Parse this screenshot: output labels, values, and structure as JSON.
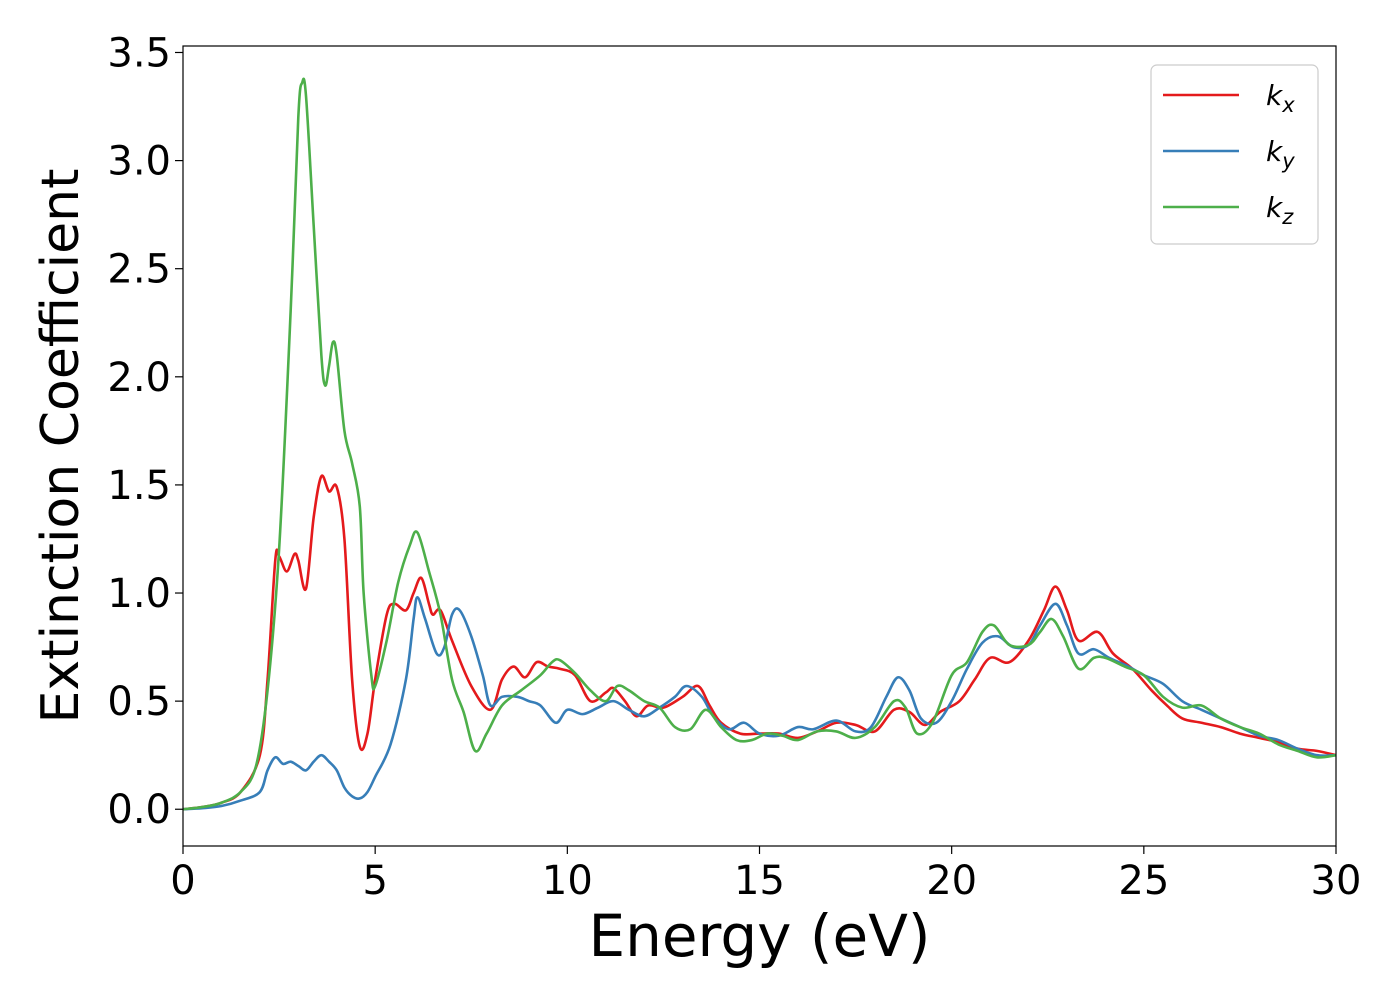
{
  "chart_data": {
    "type": "line",
    "title": "",
    "xlabel": "Energy (eV)",
    "ylabel": "Extinction Coefficient",
    "xlim": [
      0,
      30
    ],
    "ylim": [
      -0.17,
      3.53
    ],
    "xticks": [
      0,
      5,
      10,
      15,
      20,
      25,
      30
    ],
    "xtick_labels": [
      "0",
      "5",
      "10",
      "15",
      "20",
      "25",
      "30"
    ],
    "yticks": [
      0.0,
      0.5,
      1.0,
      1.5,
      2.0,
      2.5,
      3.0,
      3.5
    ],
    "ytick_labels": [
      "0.0",
      "0.5",
      "1.0",
      "1.5",
      "2.0",
      "2.5",
      "3.0",
      "3.5"
    ],
    "grid": false,
    "legend_position": "top-right",
    "series": [
      {
        "name": "k_x",
        "legend_base": "k",
        "legend_sub": "x",
        "color": "#e41a1c",
        "points": [
          [
            0,
            0
          ],
          [
            0.5,
            0.01
          ],
          [
            1.0,
            0.03
          ],
          [
            1.5,
            0.08
          ],
          [
            2.0,
            0.25
          ],
          [
            2.2,
            0.6
          ],
          [
            2.4,
            1.15
          ],
          [
            2.5,
            1.17
          ],
          [
            2.7,
            1.1
          ],
          [
            2.9,
            1.18
          ],
          [
            3.0,
            1.15
          ],
          [
            3.2,
            1.02
          ],
          [
            3.4,
            1.35
          ],
          [
            3.6,
            1.54
          ],
          [
            3.8,
            1.47
          ],
          [
            4.0,
            1.49
          ],
          [
            4.2,
            1.25
          ],
          [
            4.4,
            0.6
          ],
          [
            4.6,
            0.29
          ],
          [
            4.8,
            0.35
          ],
          [
            5.0,
            0.6
          ],
          [
            5.3,
            0.9
          ],
          [
            5.5,
            0.95
          ],
          [
            5.8,
            0.92
          ],
          [
            6.0,
            1.0
          ],
          [
            6.2,
            1.07
          ],
          [
            6.4,
            0.95
          ],
          [
            6.5,
            0.9
          ],
          [
            6.7,
            0.92
          ],
          [
            7.0,
            0.78
          ],
          [
            7.5,
            0.57
          ],
          [
            8.0,
            0.46
          ],
          [
            8.3,
            0.6
          ],
          [
            8.6,
            0.66
          ],
          [
            8.9,
            0.61
          ],
          [
            9.2,
            0.68
          ],
          [
            9.5,
            0.66
          ],
          [
            9.8,
            0.65
          ],
          [
            10.2,
            0.62
          ],
          [
            10.6,
            0.5
          ],
          [
            11.0,
            0.54
          ],
          [
            11.2,
            0.56
          ],
          [
            11.5,
            0.5
          ],
          [
            11.8,
            0.43
          ],
          [
            12.1,
            0.48
          ],
          [
            12.5,
            0.47
          ],
          [
            13.0,
            0.52
          ],
          [
            13.4,
            0.57
          ],
          [
            13.7,
            0.48
          ],
          [
            14.0,
            0.4
          ],
          [
            14.5,
            0.35
          ],
          [
            15.0,
            0.35
          ],
          [
            15.5,
            0.35
          ],
          [
            16.0,
            0.33
          ],
          [
            16.5,
            0.36
          ],
          [
            17.0,
            0.4
          ],
          [
            17.5,
            0.39
          ],
          [
            18.0,
            0.36
          ],
          [
            18.5,
            0.46
          ],
          [
            18.9,
            0.45
          ],
          [
            19.3,
            0.39
          ],
          [
            19.7,
            0.45
          ],
          [
            20.2,
            0.5
          ],
          [
            20.6,
            0.6
          ],
          [
            21.0,
            0.7
          ],
          [
            21.5,
            0.68
          ],
          [
            22.0,
            0.78
          ],
          [
            22.4,
            0.92
          ],
          [
            22.7,
            1.03
          ],
          [
            23.0,
            0.92
          ],
          [
            23.3,
            0.78
          ],
          [
            23.8,
            0.82
          ],
          [
            24.2,
            0.72
          ],
          [
            24.7,
            0.65
          ],
          [
            25.2,
            0.55
          ],
          [
            25.6,
            0.48
          ],
          [
            26.0,
            0.42
          ],
          [
            26.5,
            0.4
          ],
          [
            27.0,
            0.38
          ],
          [
            27.5,
            0.35
          ],
          [
            28.0,
            0.33
          ],
          [
            28.5,
            0.31
          ],
          [
            29.0,
            0.28
          ],
          [
            29.5,
            0.27
          ],
          [
            30.0,
            0.25
          ]
        ]
      },
      {
        "name": "k_y",
        "legend_base": "k",
        "legend_sub": "y",
        "color": "#377eb8",
        "points": [
          [
            0,
            0
          ],
          [
            0.5,
            0.005
          ],
          [
            1.0,
            0.015
          ],
          [
            1.5,
            0.04
          ],
          [
            2.0,
            0.08
          ],
          [
            2.2,
            0.18
          ],
          [
            2.4,
            0.24
          ],
          [
            2.6,
            0.21
          ],
          [
            2.8,
            0.22
          ],
          [
            3.0,
            0.2
          ],
          [
            3.2,
            0.18
          ],
          [
            3.4,
            0.22
          ],
          [
            3.6,
            0.25
          ],
          [
            3.8,
            0.22
          ],
          [
            4.0,
            0.18
          ],
          [
            4.2,
            0.1
          ],
          [
            4.4,
            0.06
          ],
          [
            4.6,
            0.05
          ],
          [
            4.8,
            0.08
          ],
          [
            5.0,
            0.15
          ],
          [
            5.4,
            0.3
          ],
          [
            5.8,
            0.6
          ],
          [
            6.0,
            0.88
          ],
          [
            6.1,
            0.98
          ],
          [
            6.3,
            0.88
          ],
          [
            6.6,
            0.72
          ],
          [
            6.8,
            0.75
          ],
          [
            7.0,
            0.9
          ],
          [
            7.2,
            0.92
          ],
          [
            7.5,
            0.8
          ],
          [
            7.8,
            0.62
          ],
          [
            8.0,
            0.48
          ],
          [
            8.3,
            0.52
          ],
          [
            8.7,
            0.52
          ],
          [
            9.0,
            0.5
          ],
          [
            9.3,
            0.48
          ],
          [
            9.7,
            0.4
          ],
          [
            10.0,
            0.46
          ],
          [
            10.4,
            0.44
          ],
          [
            10.8,
            0.47
          ],
          [
            11.2,
            0.5
          ],
          [
            11.6,
            0.46
          ],
          [
            12.0,
            0.43
          ],
          [
            12.4,
            0.47
          ],
          [
            12.8,
            0.52
          ],
          [
            13.1,
            0.57
          ],
          [
            13.5,
            0.52
          ],
          [
            13.8,
            0.43
          ],
          [
            14.2,
            0.37
          ],
          [
            14.6,
            0.4
          ],
          [
            15.0,
            0.35
          ],
          [
            15.5,
            0.34
          ],
          [
            16.0,
            0.38
          ],
          [
            16.4,
            0.37
          ],
          [
            17.0,
            0.41
          ],
          [
            17.5,
            0.36
          ],
          [
            17.9,
            0.38
          ],
          [
            18.3,
            0.52
          ],
          [
            18.6,
            0.61
          ],
          [
            18.9,
            0.55
          ],
          [
            19.2,
            0.42
          ],
          [
            19.6,
            0.4
          ],
          [
            20.0,
            0.5
          ],
          [
            20.4,
            0.65
          ],
          [
            20.8,
            0.77
          ],
          [
            21.2,
            0.8
          ],
          [
            21.6,
            0.75
          ],
          [
            22.0,
            0.76
          ],
          [
            22.3,
            0.85
          ],
          [
            22.7,
            0.95
          ],
          [
            23.0,
            0.85
          ],
          [
            23.3,
            0.72
          ],
          [
            23.7,
            0.74
          ],
          [
            24.1,
            0.7
          ],
          [
            24.6,
            0.66
          ],
          [
            25.0,
            0.62
          ],
          [
            25.5,
            0.58
          ],
          [
            26.0,
            0.5
          ],
          [
            26.5,
            0.46
          ],
          [
            27.0,
            0.42
          ],
          [
            27.5,
            0.38
          ],
          [
            28.0,
            0.34
          ],
          [
            28.5,
            0.32
          ],
          [
            29.0,
            0.28
          ],
          [
            29.5,
            0.25
          ],
          [
            30.0,
            0.25
          ]
        ]
      },
      {
        "name": "k_z",
        "legend_base": "k",
        "legend_sub": "z",
        "color": "#4daf4a",
        "points": [
          [
            0,
            0
          ],
          [
            0.5,
            0.01
          ],
          [
            1.0,
            0.03
          ],
          [
            1.5,
            0.08
          ],
          [
            1.9,
            0.2
          ],
          [
            2.2,
            0.55
          ],
          [
            2.5,
            1.2
          ],
          [
            2.8,
            2.3
          ],
          [
            3.0,
            3.2
          ],
          [
            3.1,
            3.36
          ],
          [
            3.2,
            3.3
          ],
          [
            3.4,
            2.7
          ],
          [
            3.6,
            2.1
          ],
          [
            3.7,
            1.96
          ],
          [
            3.8,
            2.05
          ],
          [
            3.9,
            2.16
          ],
          [
            4.0,
            2.1
          ],
          [
            4.2,
            1.75
          ],
          [
            4.4,
            1.6
          ],
          [
            4.6,
            1.4
          ],
          [
            4.7,
            1.0
          ],
          [
            4.9,
            0.62
          ],
          [
            5.0,
            0.57
          ],
          [
            5.3,
            0.78
          ],
          [
            5.6,
            1.05
          ],
          [
            5.9,
            1.22
          ],
          [
            6.1,
            1.28
          ],
          [
            6.4,
            1.1
          ],
          [
            6.7,
            0.9
          ],
          [
            7.0,
            0.6
          ],
          [
            7.3,
            0.45
          ],
          [
            7.6,
            0.27
          ],
          [
            7.9,
            0.35
          ],
          [
            8.3,
            0.48
          ],
          [
            8.8,
            0.55
          ],
          [
            9.3,
            0.62
          ],
          [
            9.6,
            0.68
          ],
          [
            9.8,
            0.69
          ],
          [
            10.2,
            0.63
          ],
          [
            10.6,
            0.55
          ],
          [
            11.0,
            0.5
          ],
          [
            11.3,
            0.57
          ],
          [
            11.6,
            0.55
          ],
          [
            12.0,
            0.5
          ],
          [
            12.4,
            0.47
          ],
          [
            12.8,
            0.38
          ],
          [
            13.2,
            0.37
          ],
          [
            13.6,
            0.46
          ],
          [
            14.0,
            0.38
          ],
          [
            14.4,
            0.32
          ],
          [
            14.8,
            0.32
          ],
          [
            15.2,
            0.35
          ],
          [
            15.6,
            0.34
          ],
          [
            16.0,
            0.32
          ],
          [
            16.5,
            0.36
          ],
          [
            17.0,
            0.36
          ],
          [
            17.5,
            0.33
          ],
          [
            18.0,
            0.38
          ],
          [
            18.5,
            0.5
          ],
          [
            18.8,
            0.47
          ],
          [
            19.1,
            0.35
          ],
          [
            19.5,
            0.4
          ],
          [
            20.0,
            0.62
          ],
          [
            20.4,
            0.68
          ],
          [
            20.8,
            0.82
          ],
          [
            21.1,
            0.85
          ],
          [
            21.5,
            0.76
          ],
          [
            22.0,
            0.76
          ],
          [
            22.3,
            0.82
          ],
          [
            22.6,
            0.88
          ],
          [
            22.9,
            0.8
          ],
          [
            23.3,
            0.65
          ],
          [
            23.7,
            0.7
          ],
          [
            24.0,
            0.7
          ],
          [
            24.5,
            0.66
          ],
          [
            25.0,
            0.62
          ],
          [
            25.5,
            0.52
          ],
          [
            26.0,
            0.47
          ],
          [
            26.5,
            0.48
          ],
          [
            27.0,
            0.42
          ],
          [
            27.5,
            0.38
          ],
          [
            28.0,
            0.35
          ],
          [
            28.5,
            0.3
          ],
          [
            29.0,
            0.27
          ],
          [
            29.5,
            0.24
          ],
          [
            30.0,
            0.25
          ]
        ]
      }
    ]
  }
}
